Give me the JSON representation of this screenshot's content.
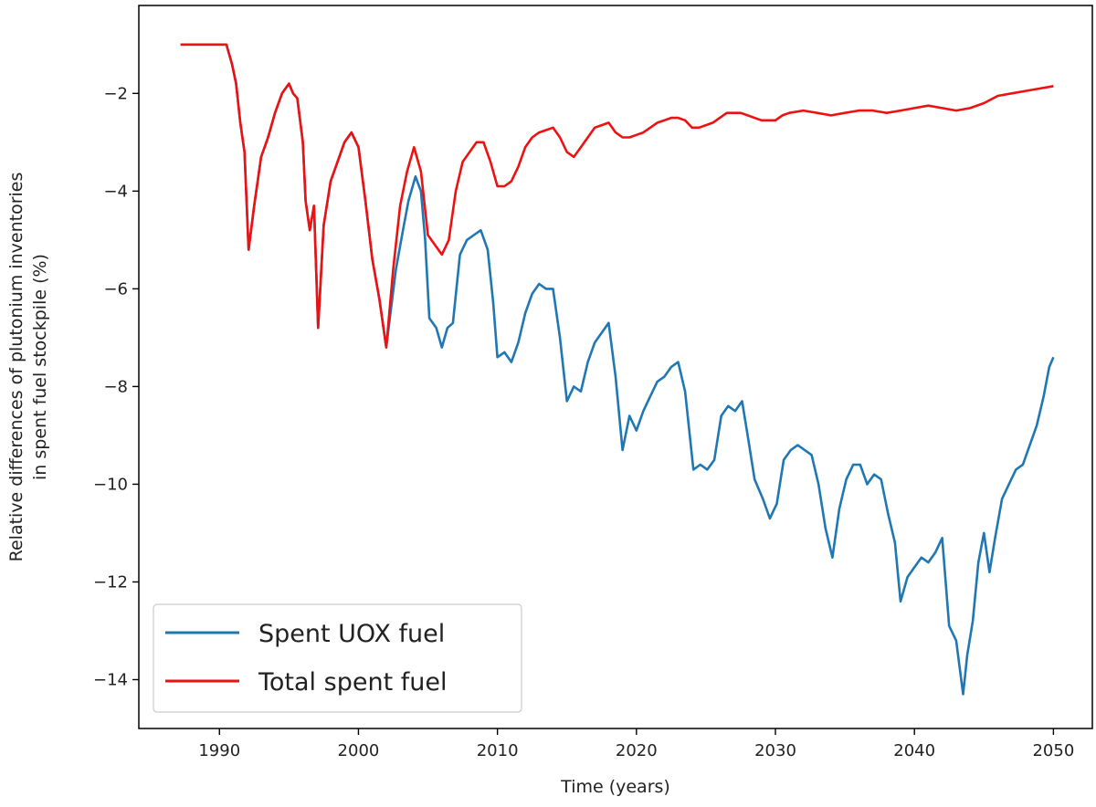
{
  "chart_data": {
    "type": "line",
    "title": "",
    "xlabel": "Time (years)",
    "ylabel_lines": [
      "Relative differences of plutonium inventories",
      "in spent fuel stockpile (%)"
    ],
    "xlim": [
      1984.2,
      2052.8
    ],
    "ylim": [
      -15.0,
      -0.2
    ],
    "xticks": [
      1990,
      2000,
      2010,
      2020,
      2030,
      2040,
      2050
    ],
    "yticks": [
      -14,
      -12,
      -10,
      -8,
      -6,
      -4,
      -2
    ],
    "xtick_labels": [
      "1990",
      "2000",
      "2010",
      "2020",
      "2030",
      "2040",
      "2050"
    ],
    "ytick_labels": [
      "−14",
      "−12",
      "−10",
      "−8",
      "−6",
      "−4",
      "−2"
    ],
    "grid": false,
    "legend_position": "lower-left",
    "series": [
      {
        "name": "Spent UOX fuel",
        "color": "#1f77b4",
        "points": [
          [
            1987.2,
            -1.0
          ],
          [
            1990.5,
            -1.0
          ],
          [
            1990.9,
            -1.4
          ],
          [
            1991.2,
            -1.8
          ],
          [
            1991.5,
            -2.6
          ],
          [
            1991.8,
            -3.2
          ],
          [
            1992.1,
            -5.2
          ],
          [
            1992.5,
            -4.3
          ],
          [
            1993.0,
            -3.3
          ],
          [
            1993.5,
            -2.9
          ],
          [
            1994.0,
            -2.4
          ],
          [
            1994.5,
            -2.0
          ],
          [
            1995.0,
            -1.8
          ],
          [
            1995.3,
            -2.0
          ],
          [
            1995.6,
            -2.1
          ],
          [
            1996.0,
            -3.0
          ],
          [
            1996.2,
            -4.2
          ],
          [
            1996.5,
            -4.8
          ],
          [
            1996.8,
            -4.3
          ],
          [
            1997.1,
            -6.8
          ],
          [
            1997.5,
            -4.7
          ],
          [
            1998.0,
            -3.8
          ],
          [
            1998.5,
            -3.4
          ],
          [
            1999.0,
            -3.0
          ],
          [
            1999.5,
            -2.8
          ],
          [
            2000.0,
            -3.1
          ],
          [
            2000.5,
            -4.2
          ],
          [
            2001.0,
            -5.4
          ],
          [
            2001.5,
            -6.2
          ],
          [
            2002.0,
            -7.2
          ],
          [
            2002.3,
            -6.5
          ],
          [
            2002.7,
            -5.6
          ],
          [
            2003.2,
            -4.8
          ],
          [
            2003.6,
            -4.2
          ],
          [
            2004.1,
            -3.7
          ],
          [
            2004.5,
            -4.0
          ],
          [
            2004.8,
            -5.0
          ],
          [
            2005.1,
            -6.6
          ],
          [
            2005.6,
            -6.8
          ],
          [
            2006.0,
            -7.2
          ],
          [
            2006.4,
            -6.8
          ],
          [
            2006.8,
            -6.7
          ],
          [
            2007.3,
            -5.3
          ],
          [
            2007.8,
            -5.0
          ],
          [
            2008.3,
            -4.9
          ],
          [
            2008.8,
            -4.8
          ],
          [
            2009.3,
            -5.2
          ],
          [
            2009.7,
            -6.3
          ],
          [
            2010.0,
            -7.4
          ],
          [
            2010.5,
            -7.3
          ],
          [
            2011.0,
            -7.5
          ],
          [
            2011.5,
            -7.1
          ],
          [
            2012.0,
            -6.5
          ],
          [
            2012.5,
            -6.1
          ],
          [
            2013.0,
            -5.9
          ],
          [
            2013.5,
            -6.0
          ],
          [
            2014.0,
            -6.0
          ],
          [
            2014.5,
            -7.0
          ],
          [
            2015.0,
            -8.3
          ],
          [
            2015.5,
            -8.0
          ],
          [
            2016.0,
            -8.1
          ],
          [
            2016.5,
            -7.5
          ],
          [
            2017.0,
            -7.1
          ],
          [
            2017.5,
            -6.9
          ],
          [
            2018.0,
            -6.7
          ],
          [
            2018.5,
            -7.8
          ],
          [
            2019.0,
            -9.3
          ],
          [
            2019.5,
            -8.6
          ],
          [
            2020.0,
            -8.9
          ],
          [
            2020.5,
            -8.5
          ],
          [
            2021.0,
            -8.2
          ],
          [
            2021.5,
            -7.9
          ],
          [
            2022.0,
            -7.8
          ],
          [
            2022.5,
            -7.6
          ],
          [
            2023.0,
            -7.5
          ],
          [
            2023.5,
            -8.1
          ],
          [
            2024.1,
            -9.7
          ],
          [
            2024.6,
            -9.6
          ],
          [
            2025.1,
            -9.7
          ],
          [
            2025.6,
            -9.5
          ],
          [
            2026.1,
            -8.6
          ],
          [
            2026.6,
            -8.4
          ],
          [
            2027.1,
            -8.5
          ],
          [
            2027.6,
            -8.3
          ],
          [
            2028.0,
            -9.0
          ],
          [
            2028.5,
            -9.9
          ],
          [
            2029.1,
            -10.3
          ],
          [
            2029.6,
            -10.7
          ],
          [
            2030.1,
            -10.4
          ],
          [
            2030.6,
            -9.5
          ],
          [
            2031.1,
            -9.3
          ],
          [
            2031.6,
            -9.2
          ],
          [
            2032.1,
            -9.3
          ],
          [
            2032.6,
            -9.4
          ],
          [
            2033.1,
            -10.0
          ],
          [
            2033.6,
            -10.9
          ],
          [
            2034.1,
            -11.5
          ],
          [
            2034.6,
            -10.5
          ],
          [
            2035.1,
            -9.9
          ],
          [
            2035.6,
            -9.6
          ],
          [
            2036.1,
            -9.6
          ],
          [
            2036.6,
            -10.0
          ],
          [
            2037.1,
            -9.8
          ],
          [
            2037.6,
            -9.9
          ],
          [
            2038.1,
            -10.6
          ],
          [
            2038.6,
            -11.2
          ],
          [
            2039.0,
            -12.4
          ],
          [
            2039.5,
            -11.9
          ],
          [
            2040.0,
            -11.7
          ],
          [
            2040.5,
            -11.5
          ],
          [
            2041.0,
            -11.6
          ],
          [
            2041.5,
            -11.4
          ],
          [
            2042.0,
            -11.1
          ],
          [
            2042.5,
            -12.9
          ],
          [
            2043.0,
            -13.2
          ],
          [
            2043.5,
            -14.3
          ],
          [
            2043.8,
            -13.5
          ],
          [
            2044.2,
            -12.8
          ],
          [
            2044.6,
            -11.6
          ],
          [
            2045.0,
            -11.0
          ],
          [
            2045.4,
            -11.8
          ],
          [
            2045.8,
            -11.1
          ],
          [
            2046.3,
            -10.3
          ],
          [
            2046.8,
            -10.0
          ],
          [
            2047.3,
            -9.7
          ],
          [
            2047.8,
            -9.6
          ],
          [
            2048.3,
            -9.2
          ],
          [
            2048.8,
            -8.8
          ],
          [
            2049.3,
            -8.2
          ],
          [
            2049.7,
            -7.6
          ],
          [
            2050.0,
            -7.4
          ]
        ]
      },
      {
        "name": "Total spent fuel",
        "color": "#ee1111",
        "points": [
          [
            1987.2,
            -1.0
          ],
          [
            1990.5,
            -1.0
          ],
          [
            1990.9,
            -1.4
          ],
          [
            1991.2,
            -1.8
          ],
          [
            1991.5,
            -2.6
          ],
          [
            1991.8,
            -3.2
          ],
          [
            1992.1,
            -5.2
          ],
          [
            1992.5,
            -4.3
          ],
          [
            1993.0,
            -3.3
          ],
          [
            1993.5,
            -2.9
          ],
          [
            1994.0,
            -2.4
          ],
          [
            1994.5,
            -2.0
          ],
          [
            1995.0,
            -1.8
          ],
          [
            1995.3,
            -2.0
          ],
          [
            1995.6,
            -2.1
          ],
          [
            1996.0,
            -3.0
          ],
          [
            1996.2,
            -4.2
          ],
          [
            1996.5,
            -4.8
          ],
          [
            1996.8,
            -4.3
          ],
          [
            1997.1,
            -6.8
          ],
          [
            1997.5,
            -4.7
          ],
          [
            1998.0,
            -3.8
          ],
          [
            1998.5,
            -3.4
          ],
          [
            1999.0,
            -3.0
          ],
          [
            1999.5,
            -2.8
          ],
          [
            2000.0,
            -3.1
          ],
          [
            2000.5,
            -4.2
          ],
          [
            2001.0,
            -5.4
          ],
          [
            2001.5,
            -6.2
          ],
          [
            2002.0,
            -7.2
          ],
          [
            2002.5,
            -5.6
          ],
          [
            2003.0,
            -4.3
          ],
          [
            2003.5,
            -3.6
          ],
          [
            2004.0,
            -3.1
          ],
          [
            2004.5,
            -3.6
          ],
          [
            2005.0,
            -4.9
          ],
          [
            2005.5,
            -5.1
          ],
          [
            2006.0,
            -5.3
          ],
          [
            2006.5,
            -5.0
          ],
          [
            2007.0,
            -4.0
          ],
          [
            2007.5,
            -3.4
          ],
          [
            2008.0,
            -3.2
          ],
          [
            2008.5,
            -3.0
          ],
          [
            2009.0,
            -3.0
          ],
          [
            2009.5,
            -3.4
          ],
          [
            2010.0,
            -3.9
          ],
          [
            2010.5,
            -3.9
          ],
          [
            2011.0,
            -3.8
          ],
          [
            2011.5,
            -3.5
          ],
          [
            2012.0,
            -3.1
          ],
          [
            2012.5,
            -2.9
          ],
          [
            2013.0,
            -2.8
          ],
          [
            2013.5,
            -2.75
          ],
          [
            2014.0,
            -2.7
          ],
          [
            2014.5,
            -2.9
          ],
          [
            2015.0,
            -3.2
          ],
          [
            2015.5,
            -3.3
          ],
          [
            2016.0,
            -3.1
          ],
          [
            2016.5,
            -2.9
          ],
          [
            2017.0,
            -2.7
          ],
          [
            2017.5,
            -2.65
          ],
          [
            2018.0,
            -2.6
          ],
          [
            2018.5,
            -2.8
          ],
          [
            2019.0,
            -2.9
          ],
          [
            2019.5,
            -2.9
          ],
          [
            2020.0,
            -2.85
          ],
          [
            2020.5,
            -2.8
          ],
          [
            2021.0,
            -2.7
          ],
          [
            2021.5,
            -2.6
          ],
          [
            2022.0,
            -2.55
          ],
          [
            2022.5,
            -2.5
          ],
          [
            2023.0,
            -2.5
          ],
          [
            2023.5,
            -2.55
          ],
          [
            2024.0,
            -2.7
          ],
          [
            2024.5,
            -2.7
          ],
          [
            2025.0,
            -2.65
          ],
          [
            2025.5,
            -2.6
          ],
          [
            2026.0,
            -2.5
          ],
          [
            2026.5,
            -2.4
          ],
          [
            2027.0,
            -2.4
          ],
          [
            2027.5,
            -2.4
          ],
          [
            2028.0,
            -2.45
          ],
          [
            2029.0,
            -2.55
          ],
          [
            2030.0,
            -2.55
          ],
          [
            2030.5,
            -2.45
          ],
          [
            2031.0,
            -2.4
          ],
          [
            2032.0,
            -2.35
          ],
          [
            2033.0,
            -2.4
          ],
          [
            2034.0,
            -2.45
          ],
          [
            2035.0,
            -2.4
          ],
          [
            2036.0,
            -2.35
          ],
          [
            2037.0,
            -2.35
          ],
          [
            2038.0,
            -2.4
          ],
          [
            2039.0,
            -2.35
          ],
          [
            2040.0,
            -2.3
          ],
          [
            2041.0,
            -2.25
          ],
          [
            2042.0,
            -2.3
          ],
          [
            2043.0,
            -2.35
          ],
          [
            2044.0,
            -2.3
          ],
          [
            2045.0,
            -2.2
          ],
          [
            2046.0,
            -2.05
          ],
          [
            2047.0,
            -2.0
          ],
          [
            2048.0,
            -1.95
          ],
          [
            2049.0,
            -1.9
          ],
          [
            2050.0,
            -1.85
          ]
        ]
      }
    ]
  }
}
